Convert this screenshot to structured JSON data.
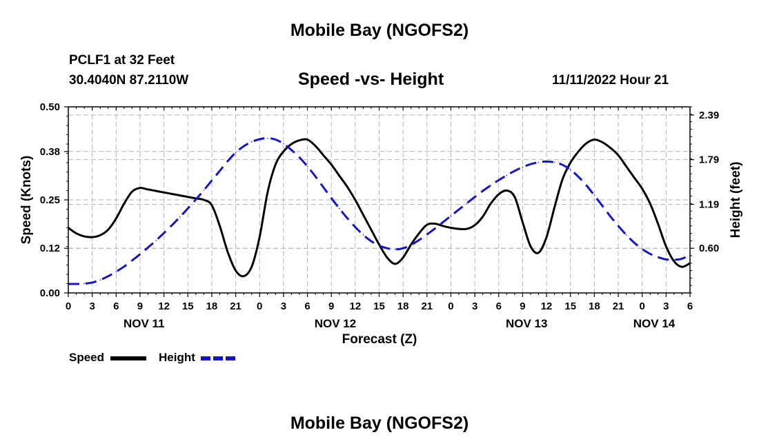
{
  "header": {
    "title": "Mobile Bay (NGOFS2)",
    "station": "PCLF1 at 32 Feet",
    "coords": "30.4040N  87.2110W",
    "subtitle": "Speed -vs- Height",
    "datetime": "11/11/2022 Hour 21"
  },
  "footer": {
    "title": "Mobile Bay (NGOFS2)"
  },
  "legend": {
    "speed_label": "Speed",
    "height_label": "Height"
  },
  "colors": {
    "speed": "#000000",
    "height": "#1515c8",
    "grid": "#b4b4b4"
  },
  "chart_data": {
    "type": "line",
    "title": "Speed -vs- Height",
    "xlabel": "Forecast (Z)",
    "ylabel": "Speed (Knots)",
    "y2label": "Height (feet)",
    "xlim": [
      0,
      78
    ],
    "ylim": [
      0,
      0.5
    ],
    "y2lim": [
      0.0,
      2.5
    ],
    "grid": true,
    "legend_position": "bottom-left",
    "x_tick_labels": [
      "0",
      "3",
      "6",
      "9",
      "12",
      "15",
      "18",
      "21",
      "0",
      "3",
      "6",
      "9",
      "12",
      "15",
      "18",
      "21",
      "0",
      "3",
      "6",
      "9",
      "12",
      "15",
      "18",
      "21",
      "0",
      "3",
      "6"
    ],
    "date_labels": [
      {
        "label": "NOV 11",
        "hour": 9.5
      },
      {
        "label": "NOV 12",
        "hour": 33.5
      },
      {
        "label": "NOV 13",
        "hour": 57.5
      },
      {
        "label": "NOV 14",
        "hour": 73.5
      }
    ],
    "y_ticks": [
      0.0,
      0.12,
      0.25,
      0.38,
      0.5
    ],
    "y_tick_labels": [
      "0.00",
      "0.12",
      "0.25",
      "0.38",
      "0.50"
    ],
    "y2_ticks": [
      0.6,
      1.19,
      1.79,
      2.39
    ],
    "y2_tick_labels": [
      "0.60",
      "1.19",
      "1.79",
      "2.39"
    ],
    "series": [
      {
        "name": "Speed",
        "axis": "left",
        "style": "solid",
        "x": [
          0,
          1,
          2,
          3,
          4,
          5,
          6,
          7,
          8,
          9,
          10,
          11,
          12,
          13,
          14,
          15,
          16,
          17,
          18,
          19,
          20,
          21,
          22,
          23,
          24,
          25,
          26,
          27,
          28,
          29,
          30,
          31,
          32,
          33,
          34,
          35,
          36,
          37,
          38,
          39,
          40,
          41,
          42,
          43,
          44,
          45,
          46,
          47,
          48,
          49,
          50,
          51,
          52,
          53,
          54,
          55,
          56,
          57,
          58,
          59,
          60,
          61,
          62,
          63,
          64,
          65,
          66,
          67,
          68,
          69,
          70,
          71,
          72,
          73,
          74,
          75,
          76,
          77,
          78
        ],
        "values": [
          0.175,
          0.16,
          0.152,
          0.15,
          0.155,
          0.17,
          0.2,
          0.24,
          0.272,
          0.282,
          0.278,
          0.274,
          0.27,
          0.266,
          0.262,
          0.258,
          0.254,
          0.25,
          0.236,
          0.18,
          0.11,
          0.06,
          0.045,
          0.07,
          0.15,
          0.27,
          0.345,
          0.38,
          0.4,
          0.41,
          0.412,
          0.395,
          0.37,
          0.345,
          0.315,
          0.285,
          0.25,
          0.21,
          0.17,
          0.13,
          0.095,
          0.078,
          0.095,
          0.13,
          0.16,
          0.183,
          0.186,
          0.18,
          0.175,
          0.172,
          0.172,
          0.182,
          0.205,
          0.24,
          0.265,
          0.275,
          0.258,
          0.19,
          0.125,
          0.108,
          0.15,
          0.23,
          0.305,
          0.35,
          0.38,
          0.402,
          0.412,
          0.405,
          0.39,
          0.37,
          0.34,
          0.31,
          0.28,
          0.24,
          0.185,
          0.125,
          0.085,
          0.07,
          0.08
        ]
      },
      {
        "name": "Height",
        "axis": "right",
        "style": "dashed",
        "x": [
          0,
          1,
          2,
          3,
          4,
          5,
          6,
          7,
          8,
          9,
          10,
          11,
          12,
          13,
          14,
          15,
          16,
          17,
          18,
          19,
          20,
          21,
          22,
          23,
          24,
          25,
          26,
          27,
          28,
          29,
          30,
          31,
          32,
          33,
          34,
          35,
          36,
          37,
          38,
          39,
          40,
          41,
          42,
          43,
          44,
          45,
          46,
          47,
          48,
          49,
          50,
          51,
          52,
          53,
          54,
          55,
          56,
          57,
          58,
          59,
          60,
          61,
          62,
          63,
          64,
          65,
          66,
          67,
          68,
          69,
          70,
          71,
          72,
          73,
          74,
          75,
          76,
          77,
          78
        ],
        "values": [
          0.12,
          0.12,
          0.124,
          0.14,
          0.175,
          0.225,
          0.285,
          0.355,
          0.435,
          0.52,
          0.61,
          0.705,
          0.805,
          0.91,
          1.02,
          1.135,
          1.255,
          1.38,
          1.51,
          1.64,
          1.77,
          1.885,
          1.97,
          2.03,
          2.065,
          2.08,
          2.06,
          2.005,
          1.92,
          1.82,
          1.7,
          1.565,
          1.42,
          1.275,
          1.135,
          1.005,
          0.885,
          0.78,
          0.695,
          0.635,
          0.6,
          0.585,
          0.6,
          0.645,
          0.71,
          0.785,
          0.865,
          0.95,
          1.035,
          1.12,
          1.205,
          1.29,
          1.37,
          1.445,
          1.515,
          1.58,
          1.64,
          1.69,
          1.73,
          1.755,
          1.765,
          1.755,
          1.72,
          1.655,
          1.56,
          1.445,
          1.31,
          1.17,
          1.03,
          0.9,
          0.78,
          0.675,
          0.59,
          0.525,
          0.48,
          0.45,
          0.445,
          0.46,
          0.51
        ]
      }
    ]
  }
}
